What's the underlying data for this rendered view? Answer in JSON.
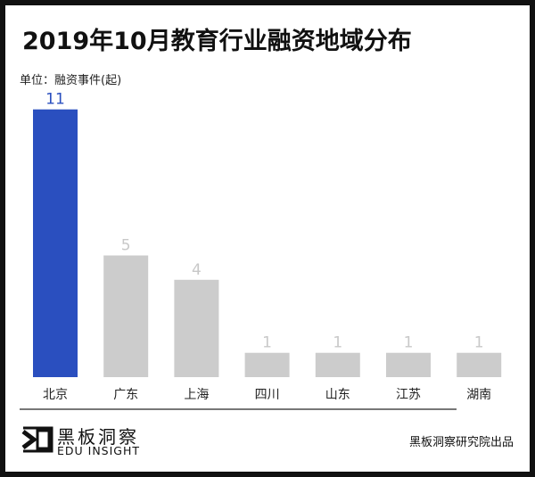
{
  "chart_data": {
    "type": "bar",
    "title": "2019年10月教育行业融资地域分布",
    "unit_label": "单位：融资事件(起)",
    "categories": [
      "北京",
      "广东",
      "上海",
      "四川",
      "山东",
      "江苏",
      "湖南"
    ],
    "values": [
      11,
      5,
      4,
      1,
      1,
      1,
      1
    ],
    "highlight_index": 0,
    "colors": {
      "highlight": "#2a4fbf",
      "default": "#cccccc",
      "highlight_label": "#2a4fbf",
      "default_label": "#c8c8c8"
    },
    "grid": false,
    "legend": "none"
  },
  "footer": {
    "logo_cn": "黑板洞察",
    "logo_en": "EDU INSIGHT",
    "credit": "黑板洞察研究院出品"
  }
}
